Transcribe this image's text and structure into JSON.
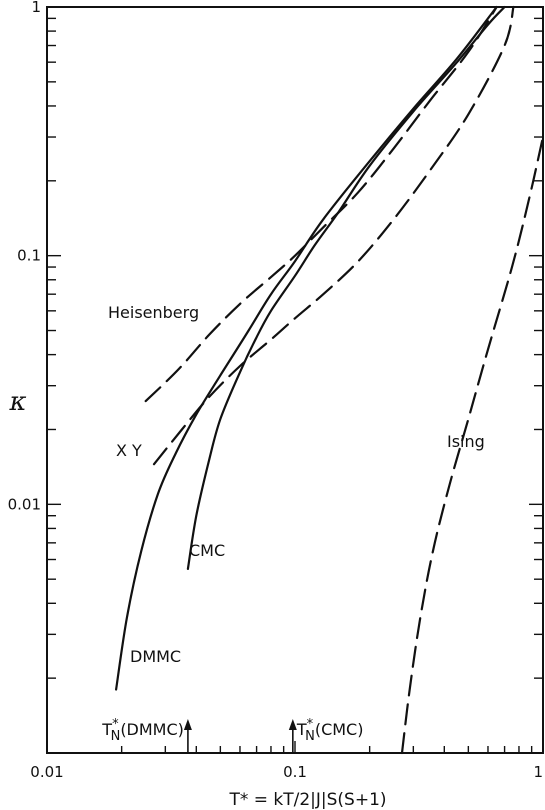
{
  "chart_data": {
    "type": "line",
    "xlabel": "T* = kT/2|J|S(S+1)",
    "ylabel": "κ",
    "x_scale": "log",
    "y_scale": "log",
    "xlim": [
      0.01,
      1
    ],
    "ylim": [
      0.001,
      1
    ],
    "grid": false,
    "x_tick_labels": [
      {
        "value": 0.01,
        "label": "0.01"
      },
      {
        "value": 0.1,
        "label": "0.1"
      },
      {
        "value": 1,
        "label": "1"
      }
    ],
    "y_tick_labels": [
      {
        "value": 0.01,
        "label": "0.01"
      },
      {
        "value": 0.1,
        "label": "0.1"
      },
      {
        "value": 1,
        "label": "1"
      }
    ],
    "series": [
      {
        "name": "Heisenberg",
        "style": "dashed",
        "x": [
          0.025,
          0.034,
          0.045,
          0.06,
          0.08,
          0.1,
          0.13,
          0.18,
          0.25,
          0.35,
          0.5,
          0.65
        ],
        "y": [
          0.026,
          0.035,
          0.048,
          0.064,
          0.082,
          0.1,
          0.13,
          0.18,
          0.27,
          0.42,
          0.66,
          1.0
        ]
      },
      {
        "name": "X Y",
        "style": "dashed",
        "x": [
          0.027,
          0.035,
          0.045,
          0.06,
          0.08,
          0.1,
          0.13,
          0.18,
          0.25,
          0.35,
          0.5,
          0.7,
          0.76
        ],
        "y": [
          0.0145,
          0.02,
          0.027,
          0.036,
          0.046,
          0.056,
          0.07,
          0.095,
          0.14,
          0.22,
          0.37,
          0.7,
          1.0
        ]
      },
      {
        "name": "CMC",
        "style": "solid",
        "x": [
          0.037,
          0.04,
          0.045,
          0.05,
          0.06,
          0.07,
          0.08,
          0.1,
          0.12,
          0.15,
          0.2,
          0.3,
          0.45,
          0.6,
          0.7
        ],
        "y": [
          0.0055,
          0.009,
          0.015,
          0.022,
          0.034,
          0.047,
          0.06,
          0.083,
          0.11,
          0.15,
          0.23,
          0.38,
          0.6,
          0.85,
          1.0
        ]
      },
      {
        "name": "DMMC",
        "style": "solid",
        "x": [
          0.019,
          0.021,
          0.024,
          0.028,
          0.033,
          0.04,
          0.05,
          0.065,
          0.08,
          0.1,
          0.13,
          0.2,
          0.3,
          0.45,
          0.65
        ],
        "y": [
          0.0018,
          0.0035,
          0.0065,
          0.011,
          0.016,
          0.023,
          0.033,
          0.05,
          0.07,
          0.095,
          0.14,
          0.24,
          0.39,
          0.62,
          1.0
        ]
      },
      {
        "name": "Ising",
        "style": "dashed",
        "x": [
          0.27,
          0.29,
          0.32,
          0.36,
          0.42,
          0.5,
          0.6,
          0.75,
          0.88,
          1.0
        ],
        "y": [
          0.001,
          0.0018,
          0.0035,
          0.0065,
          0.012,
          0.022,
          0.042,
          0.09,
          0.17,
          0.3
        ]
      }
    ],
    "curve_labels": [
      {
        "text": "Heisenberg",
        "series": "Heisenberg"
      },
      {
        "text": "X Y",
        "series": "X Y"
      },
      {
        "text": "CMC",
        "series": "CMC"
      },
      {
        "text": "DMMC",
        "series": "DMMC"
      },
      {
        "text": "Ising",
        "series": "Ising"
      }
    ],
    "markers": [
      {
        "name": "TN*(DMMC)",
        "sub": "N",
        "label_suffix": "(DMMC)",
        "x": 0.037
      },
      {
        "name": "TN*(CMC)",
        "sub": "N",
        "label_suffix": "(CMC)",
        "x": 0.098
      }
    ]
  }
}
